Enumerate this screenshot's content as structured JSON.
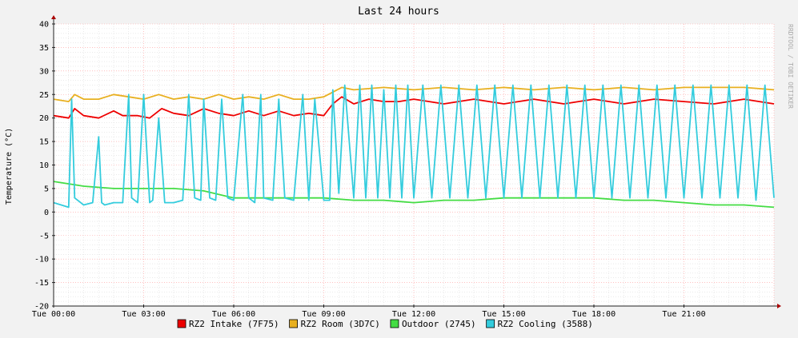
{
  "chart_data": {
    "type": "line",
    "title": "Last 24 hours",
    "ylabel": "Temperature (°C)",
    "watermark": "RRDTOOL / TOBI OETIKER",
    "ylim": [
      -20,
      40
    ],
    "yticks": [
      40,
      35,
      30,
      25,
      20,
      15,
      10,
      5,
      0,
      -5,
      -10,
      -15,
      -20
    ],
    "xlim_hours": [
      0,
      24
    ],
    "xticks": [
      {
        "hour": 0,
        "label": "Tue 00:00"
      },
      {
        "hour": 3,
        "label": "Tue 03:00"
      },
      {
        "hour": 6,
        "label": "Tue 06:00"
      },
      {
        "hour": 9,
        "label": "Tue 09:00"
      },
      {
        "hour": 12,
        "label": "Tue 12:00"
      },
      {
        "hour": 15,
        "label": "Tue 15:00"
      },
      {
        "hour": 18,
        "label": "Tue 18:00"
      },
      {
        "hour": 21,
        "label": "Tue 21:00"
      }
    ],
    "grid": true,
    "background": "#ffffff",
    "legend_position": "bottom",
    "series": [
      {
        "name": "RZ2 Intake (7F75)",
        "color": "#ee0000",
        "x": [
          0.0,
          0.5,
          0.7,
          1.0,
          1.5,
          2.0,
          2.3,
          2.8,
          3.2,
          3.6,
          4.0,
          4.5,
          5.0,
          5.5,
          6.0,
          6.5,
          7.0,
          7.5,
          8.0,
          8.5,
          9.0,
          9.3,
          9.6,
          10.0,
          10.5,
          11.0,
          11.5,
          12.0,
          13.0,
          14.0,
          15.0,
          16.0,
          17.0,
          18.0,
          19.0,
          20.0,
          21.0,
          22.0,
          23.0,
          24.0
        ],
        "values": [
          20.5,
          20.0,
          22.0,
          20.5,
          20.0,
          21.5,
          20.5,
          20.5,
          20.0,
          22.0,
          21.0,
          20.5,
          22.0,
          21.0,
          20.5,
          21.5,
          20.5,
          21.5,
          20.5,
          21.0,
          20.5,
          23.0,
          24.5,
          23.0,
          24.0,
          23.5,
          23.5,
          24.0,
          23.0,
          24.0,
          23.0,
          24.0,
          23.0,
          24.0,
          23.0,
          24.0,
          23.5,
          23.0,
          24.0,
          23.0
        ]
      },
      {
        "name": "RZ2 Room (3D7C)",
        "color": "#e8b020",
        "x": [
          0.0,
          0.5,
          0.7,
          1.0,
          1.5,
          2.0,
          2.5,
          3.0,
          3.5,
          4.0,
          4.5,
          5.0,
          5.5,
          6.0,
          6.5,
          7.0,
          7.5,
          8.0,
          8.5,
          9.0,
          9.3,
          9.6,
          10.0,
          11.0,
          12.0,
          13.0,
          14.0,
          15.0,
          16.0,
          17.0,
          18.0,
          19.0,
          20.0,
          21.0,
          22.0,
          23.0,
          24.0
        ],
        "values": [
          24.0,
          23.5,
          25.0,
          24.0,
          24.0,
          25.0,
          24.5,
          24.0,
          25.0,
          24.0,
          24.5,
          24.0,
          25.0,
          24.0,
          24.5,
          24.0,
          25.0,
          24.0,
          24.0,
          24.5,
          25.5,
          26.5,
          26.0,
          26.5,
          26.0,
          26.5,
          26.0,
          26.5,
          26.0,
          26.5,
          26.0,
          26.5,
          26.0,
          26.5,
          26.5,
          26.5,
          26.0
        ]
      },
      {
        "name": "Outdoor (2745)",
        "color": "#44dd44",
        "x": [
          0,
          1,
          2,
          3,
          4,
          5,
          6,
          7,
          8,
          9,
          10,
          11,
          12,
          13,
          14,
          15,
          16,
          17,
          18,
          19,
          20,
          21,
          22,
          23,
          24
        ],
        "values": [
          6.5,
          5.5,
          5.0,
          5.0,
          5.0,
          4.5,
          3.0,
          3.0,
          3.0,
          3.0,
          2.5,
          2.5,
          2.0,
          2.5,
          2.5,
          3.0,
          3.0,
          3.0,
          3.0,
          2.5,
          2.5,
          2.0,
          1.5,
          1.5,
          1.0
        ]
      },
      {
        "name": "RZ2 Cooling (3588)",
        "color": "#33ccdd",
        "x": [
          0.0,
          0.5,
          0.6,
          0.7,
          0.9,
          1.0,
          1.3,
          1.5,
          1.6,
          1.7,
          2.0,
          2.3,
          2.5,
          2.6,
          2.8,
          3.0,
          3.2,
          3.3,
          3.5,
          3.7,
          4.0,
          4.3,
          4.5,
          4.7,
          4.9,
          5.0,
          5.2,
          5.4,
          5.6,
          5.8,
          6.0,
          6.3,
          6.5,
          6.7,
          6.9,
          7.0,
          7.3,
          7.5,
          7.7,
          8.0,
          8.3,
          8.5,
          8.7,
          9.0,
          9.2,
          9.3,
          9.5,
          9.7,
          10.0,
          10.2,
          10.4,
          10.6,
          10.8,
          11.0,
          11.2,
          11.4,
          11.6,
          11.8,
          12.0,
          12.3,
          12.6,
          12.9,
          13.2,
          13.5,
          13.8,
          14.1,
          14.4,
          14.7,
          15.0,
          15.3,
          15.6,
          15.9,
          16.2,
          16.5,
          16.8,
          17.1,
          17.4,
          17.7,
          18.0,
          18.3,
          18.6,
          18.9,
          19.2,
          19.5,
          19.8,
          20.1,
          20.4,
          20.7,
          21.0,
          21.3,
          21.6,
          21.9,
          22.2,
          22.5,
          22.8,
          23.1,
          23.4,
          23.7,
          24.0
        ],
        "values": [
          2.0,
          1.0,
          24.0,
          3.0,
          2.0,
          1.5,
          2.0,
          16.0,
          2.0,
          1.5,
          2.0,
          2.0,
          25.0,
          3.0,
          2.0,
          25.0,
          2.0,
          2.5,
          20.0,
          2.0,
          2.0,
          2.5,
          25.0,
          3.0,
          2.5,
          24.0,
          3.0,
          2.5,
          24.0,
          3.0,
          2.5,
          25.0,
          3.0,
          2.0,
          25.0,
          3.0,
          2.5,
          24.0,
          3.0,
          2.5,
          25.0,
          2.5,
          24.0,
          2.5,
          2.5,
          26.0,
          4.0,
          27.0,
          3.0,
          27.0,
          3.0,
          27.0,
          3.0,
          26.0,
          3.0,
          27.0,
          3.0,
          27.0,
          3.0,
          27.0,
          3.0,
          27.0,
          3.0,
          27.0,
          3.0,
          27.0,
          3.0,
          27.0,
          3.0,
          27.0,
          3.0,
          27.0,
          3.0,
          27.0,
          3.0,
          27.0,
          3.0,
          27.0,
          3.0,
          27.0,
          3.0,
          27.0,
          3.0,
          27.0,
          3.0,
          27.0,
          3.0,
          27.0,
          3.0,
          27.0,
          3.0,
          27.0,
          3.0,
          27.0,
          3.0,
          27.0,
          2.5,
          27.0,
          3.0
        ]
      }
    ]
  }
}
